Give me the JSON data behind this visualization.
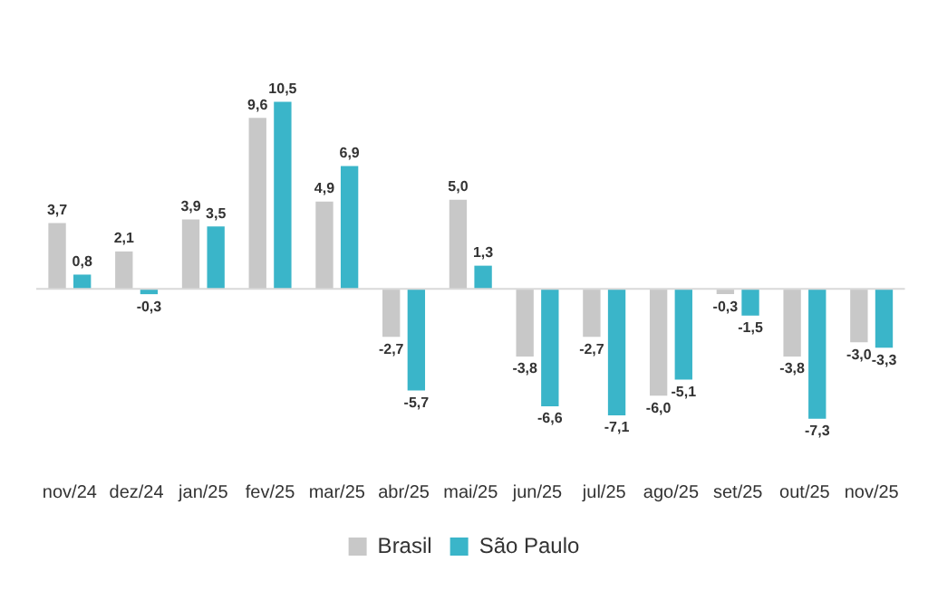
{
  "chart_data": {
    "type": "bar",
    "categories": [
      "nov/24",
      "dez/24",
      "jan/25",
      "fev/25",
      "mar/25",
      "abr/25",
      "mai/25",
      "jun/25",
      "jul/25",
      "ago/25",
      "set/25",
      "out/25",
      "nov/25"
    ],
    "series": [
      {
        "name": "Brasil",
        "color": "#c8c8c8",
        "values": [
          3.7,
          2.1,
          3.9,
          9.6,
          4.9,
          -2.7,
          5.0,
          -3.8,
          -2.7,
          -6.0,
          -0.3,
          -3.8,
          -3.0
        ],
        "value_labels": [
          "3,7",
          "2,1",
          "3,9",
          "9,6",
          "4,9",
          "-2,7",
          "5,0",
          "-3,8",
          "-2,7",
          "-6,0",
          "-0,3",
          "-3,8",
          "-3,0"
        ]
      },
      {
        "name": "São Paulo",
        "color": "#3ab5c9",
        "values": [
          0.8,
          -0.3,
          3.5,
          10.5,
          6.9,
          -5.7,
          1.3,
          -6.6,
          -7.1,
          -5.1,
          -1.5,
          -7.3,
          -3.3
        ],
        "value_labels": [
          "0,8",
          "-0,3",
          "3,5",
          "10,5",
          "6,9",
          "-5,7",
          "1,3",
          "-6,6",
          "-7,1",
          "-5,1",
          "-1,5",
          "-7,3",
          "-3,3"
        ]
      }
    ],
    "tick_labels": "x",
    "grid": false,
    "legend": "bottom"
  }
}
